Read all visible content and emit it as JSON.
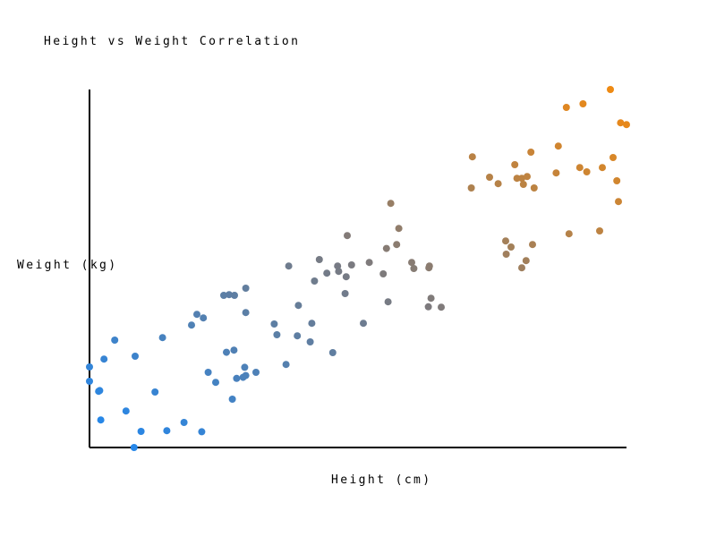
{
  "chart_data": {
    "type": "scatter",
    "title": "Height vs Weight Correlation",
    "xlabel": "Height (cm)",
    "ylabel": "Weight (kg)",
    "xlim": [
      0,
      100
    ],
    "ylim": [
      0,
      100
    ],
    "grid": false,
    "legend": "none",
    "ticks": "none",
    "color_scale": {
      "low": "#1e88f2",
      "mid": "#7a7a80",
      "high": "#f28a10"
    },
    "series": [
      {
        "points": [
          {
            "x": 0.0,
            "y": 22.5
          },
          {
            "x": 0.0,
            "y": 18.5
          },
          {
            "x": 1.7,
            "y": 15.7
          },
          {
            "x": 1.9,
            "y": 15.9
          },
          {
            "x": 2.1,
            "y": 7.7
          },
          {
            "x": 2.7,
            "y": 24.7
          },
          {
            "x": 4.7,
            "y": 30.0
          },
          {
            "x": 6.8,
            "y": 10.2
          },
          {
            "x": 8.3,
            "y": 0.0
          },
          {
            "x": 8.5,
            "y": 25.5
          },
          {
            "x": 9.6,
            "y": 4.5
          },
          {
            "x": 12.2,
            "y": 15.5
          },
          {
            "x": 13.6,
            "y": 30.7
          },
          {
            "x": 14.4,
            "y": 4.7
          },
          {
            "x": 17.6,
            "y": 7.0
          },
          {
            "x": 19.0,
            "y": 34.2
          },
          {
            "x": 20.0,
            "y": 37.2
          },
          {
            "x": 20.9,
            "y": 4.4
          },
          {
            "x": 21.2,
            "y": 36.2
          },
          {
            "x": 22.1,
            "y": 21.0
          },
          {
            "x": 23.5,
            "y": 18.2
          },
          {
            "x": 25.0,
            "y": 42.5
          },
          {
            "x": 25.5,
            "y": 26.6
          },
          {
            "x": 26.0,
            "y": 42.7
          },
          {
            "x": 26.6,
            "y": 13.5
          },
          {
            "x": 26.9,
            "y": 27.2
          },
          {
            "x": 27.0,
            "y": 42.5
          },
          {
            "x": 27.4,
            "y": 19.3
          },
          {
            "x": 28.6,
            "y": 19.6
          },
          {
            "x": 28.9,
            "y": 22.4
          },
          {
            "x": 29.1,
            "y": 44.5
          },
          {
            "x": 29.1,
            "y": 37.7
          },
          {
            "x": 29.1,
            "y": 20.1
          },
          {
            "x": 31.0,
            "y": 21.0
          },
          {
            "x": 34.4,
            "y": 34.5
          },
          {
            "x": 34.9,
            "y": 31.5
          },
          {
            "x": 36.6,
            "y": 23.2
          },
          {
            "x": 37.1,
            "y": 50.7
          },
          {
            "x": 38.7,
            "y": 31.2
          },
          {
            "x": 38.9,
            "y": 39.7
          },
          {
            "x": 41.1,
            "y": 29.5
          },
          {
            "x": 41.4,
            "y": 34.7
          },
          {
            "x": 41.9,
            "y": 46.5
          },
          {
            "x": 42.8,
            "y": 52.5
          },
          {
            "x": 44.2,
            "y": 48.7
          },
          {
            "x": 45.3,
            "y": 26.5
          },
          {
            "x": 46.2,
            "y": 50.7
          },
          {
            "x": 46.4,
            "y": 49.2
          },
          {
            "x": 47.6,
            "y": 43.0
          },
          {
            "x": 47.8,
            "y": 47.7
          },
          {
            "x": 48.0,
            "y": 59.2
          },
          {
            "x": 48.8,
            "y": 51.0
          },
          {
            "x": 51.0,
            "y": 34.7
          },
          {
            "x": 52.1,
            "y": 51.7
          },
          {
            "x": 54.7,
            "y": 48.5
          },
          {
            "x": 55.3,
            "y": 55.6
          },
          {
            "x": 55.6,
            "y": 40.7
          },
          {
            "x": 56.1,
            "y": 68.2
          },
          {
            "x": 57.2,
            "y": 56.7
          },
          {
            "x": 57.6,
            "y": 61.2
          },
          {
            "x": 60.0,
            "y": 51.7
          },
          {
            "x": 60.4,
            "y": 50.0
          },
          {
            "x": 63.1,
            "y": 39.3
          },
          {
            "x": 63.2,
            "y": 50.2
          },
          {
            "x": 63.3,
            "y": 50.7
          },
          {
            "x": 63.6,
            "y": 41.7
          },
          {
            "x": 65.5,
            "y": 39.2
          },
          {
            "x": 71.1,
            "y": 72.5
          },
          {
            "x": 71.3,
            "y": 81.2
          },
          {
            "x": 74.5,
            "y": 75.5
          },
          {
            "x": 76.1,
            "y": 73.7
          },
          {
            "x": 77.5,
            "y": 57.7
          },
          {
            "x": 77.6,
            "y": 54.0
          },
          {
            "x": 78.5,
            "y": 56.0
          },
          {
            "x": 79.2,
            "y": 79.0
          },
          {
            "x": 79.6,
            "y": 75.2
          },
          {
            "x": 80.5,
            "y": 75.2
          },
          {
            "x": 80.5,
            "y": 50.2
          },
          {
            "x": 80.8,
            "y": 73.5
          },
          {
            "x": 81.5,
            "y": 75.7
          },
          {
            "x": 81.3,
            "y": 52.2
          },
          {
            "x": 82.2,
            "y": 82.5
          },
          {
            "x": 82.5,
            "y": 56.7
          },
          {
            "x": 82.8,
            "y": 72.5
          },
          {
            "x": 86.9,
            "y": 76.7
          },
          {
            "x": 87.3,
            "y": 84.2
          },
          {
            "x": 88.8,
            "y": 95.0
          },
          {
            "x": 89.3,
            "y": 59.7
          },
          {
            "x": 91.3,
            "y": 78.2
          },
          {
            "x": 92.6,
            "y": 77.0
          },
          {
            "x": 91.9,
            "y": 96.0
          },
          {
            "x": 95.0,
            "y": 60.5
          },
          {
            "x": 95.5,
            "y": 78.2
          },
          {
            "x": 97.0,
            "y": 100.0
          },
          {
            "x": 97.5,
            "y": 81.0
          },
          {
            "x": 98.2,
            "y": 74.5
          },
          {
            "x": 98.5,
            "y": 68.7
          },
          {
            "x": 98.9,
            "y": 90.7
          },
          {
            "x": 100.0,
            "y": 90.2
          }
        ]
      }
    ]
  }
}
